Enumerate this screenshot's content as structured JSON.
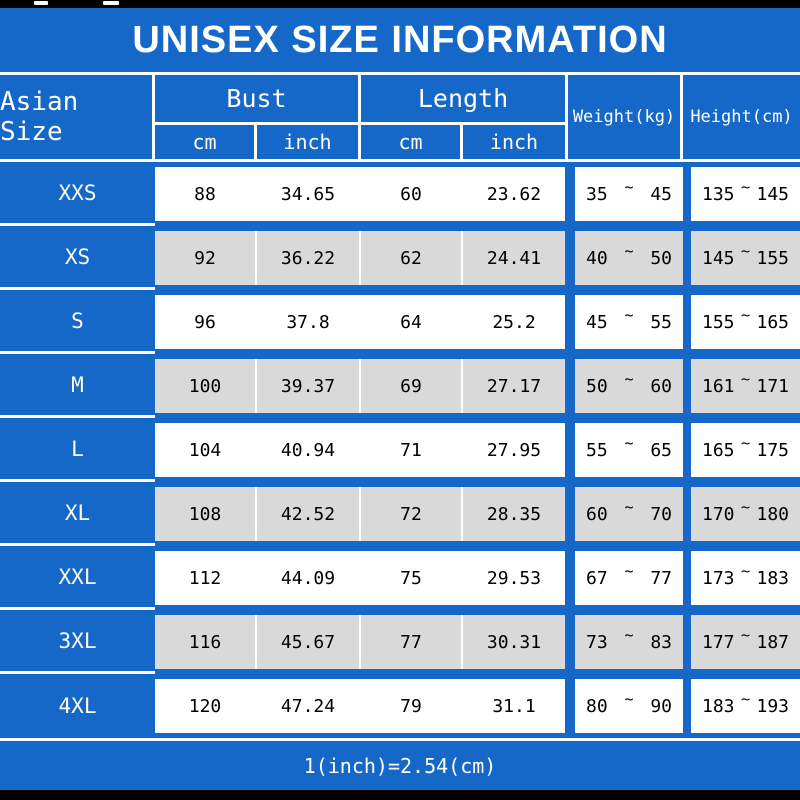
{
  "colors": {
    "background": "#1568c8",
    "row": "#ffffff",
    "row_alt": "#d9d9d9",
    "text_light": "#ffffff",
    "text_dark": "#000000",
    "bar": "#000000"
  },
  "chart_data": {
    "type": "table",
    "title": "UNISEX SIZE INFORMATION",
    "columns": {
      "size": "Asian Size",
      "bust": "Bust",
      "length": "Length",
      "weight": "Weight(kg)",
      "height": "Height(cm)",
      "unit_cm": "cm",
      "unit_inch": "inch"
    },
    "tilde": "~",
    "rows": [
      {
        "size": "XXS",
        "bust_cm": "88",
        "bust_inch": "34.65",
        "length_cm": "60",
        "length_inch": "23.62",
        "weight_min": "35",
        "weight_max": "45",
        "height_min": "135",
        "height_max": "145"
      },
      {
        "size": "XS",
        "bust_cm": "92",
        "bust_inch": "36.22",
        "length_cm": "62",
        "length_inch": "24.41",
        "weight_min": "40",
        "weight_max": "50",
        "height_min": "145",
        "height_max": "155"
      },
      {
        "size": "S",
        "bust_cm": "96",
        "bust_inch": "37.8",
        "length_cm": "64",
        "length_inch": "25.2",
        "weight_min": "45",
        "weight_max": "55",
        "height_min": "155",
        "height_max": "165"
      },
      {
        "size": "M",
        "bust_cm": "100",
        "bust_inch": "39.37",
        "length_cm": "69",
        "length_inch": "27.17",
        "weight_min": "50",
        "weight_max": "60",
        "height_min": "161",
        "height_max": "171"
      },
      {
        "size": "L",
        "bust_cm": "104",
        "bust_inch": "40.94",
        "length_cm": "71",
        "length_inch": "27.95",
        "weight_min": "55",
        "weight_max": "65",
        "height_min": "165",
        "height_max": "175"
      },
      {
        "size": "XL",
        "bust_cm": "108",
        "bust_inch": "42.52",
        "length_cm": "72",
        "length_inch": "28.35",
        "weight_min": "60",
        "weight_max": "70",
        "height_min": "170",
        "height_max": "180"
      },
      {
        "size": "XXL",
        "bust_cm": "112",
        "bust_inch": "44.09",
        "length_cm": "75",
        "length_inch": "29.53",
        "weight_min": "67",
        "weight_max": "77",
        "height_min": "173",
        "height_max": "183"
      },
      {
        "size": "3XL",
        "bust_cm": "116",
        "bust_inch": "45.67",
        "length_cm": "77",
        "length_inch": "30.31",
        "weight_min": "73",
        "weight_max": "83",
        "height_min": "177",
        "height_max": "187"
      },
      {
        "size": "4XL",
        "bust_cm": "120",
        "bust_inch": "47.24",
        "length_cm": "79",
        "length_inch": "31.1",
        "weight_min": "80",
        "weight_max": "90",
        "height_min": "183",
        "height_max": "193"
      }
    ],
    "footer": "1(inch)=2.54(cm)"
  }
}
